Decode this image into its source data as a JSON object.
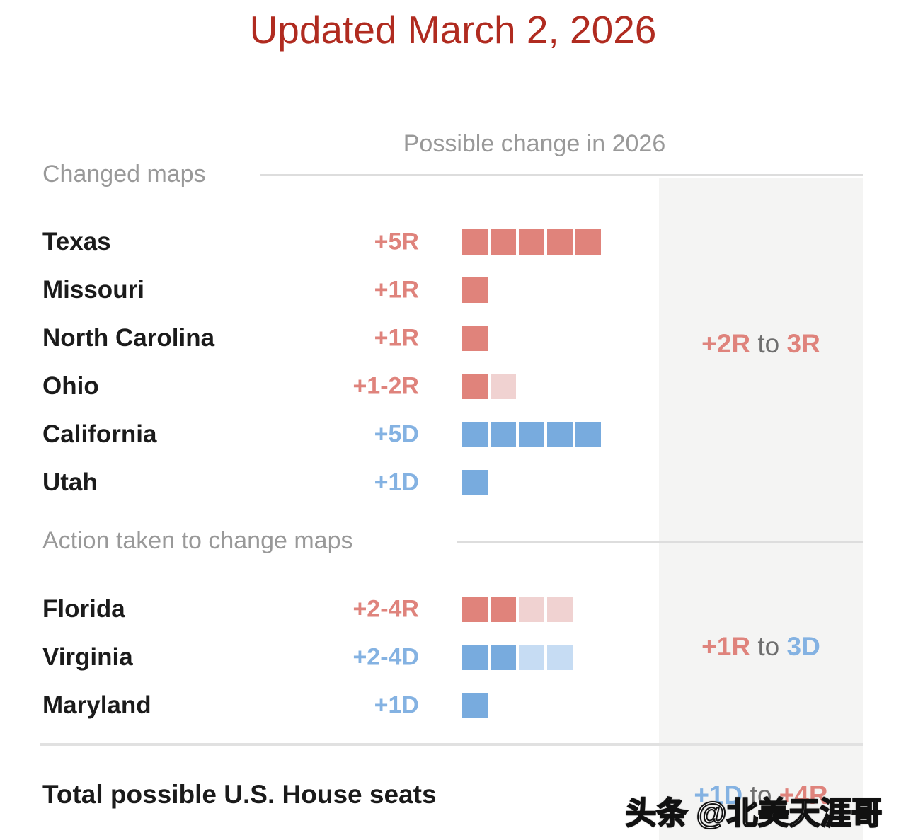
{
  "title": "Updated March 2, 2026",
  "column_header": "Possible change in 2026",
  "watermark": "头条 @北美天涯哥",
  "colors": {
    "title_red": "#b02b20",
    "solid_red": "#e0837b",
    "light_red": "#f0d2d1",
    "solid_blue": "#78abde",
    "light_blue": "#c6dcf3",
    "value_red": "#df837c",
    "value_blue": "#84b2e2",
    "label_gray": "#999999",
    "panel_gray": "#f4f4f3",
    "divider": "#dddddd",
    "text_black": "#1b1b1b",
    "annotation_gray": "#6e6e6e"
  },
  "chart_data": {
    "type": "bar",
    "unit": "U.S. House seats",
    "title": "Possible change in 2026",
    "legend": "one square = one seat; light square = possible additional seat",
    "sections": [
      {
        "label": "Changed maps",
        "net": {
          "left": "+2R",
          "left_party": "R",
          "mid": "to",
          "right": "3R",
          "right_party": "R"
        },
        "rows": [
          {
            "state": "Texas",
            "value": "+5R",
            "party": "R",
            "min_seats": 5,
            "max_seats": 5
          },
          {
            "state": "Missouri",
            "value": "+1R",
            "party": "R",
            "min_seats": 1,
            "max_seats": 1
          },
          {
            "state": "North Carolina",
            "value": "+1R",
            "party": "R",
            "min_seats": 1,
            "max_seats": 1
          },
          {
            "state": "Ohio",
            "value": "+1-2R",
            "party": "R",
            "min_seats": 1,
            "max_seats": 2
          },
          {
            "state": "California",
            "value": "+5D",
            "party": "D",
            "min_seats": 5,
            "max_seats": 5
          },
          {
            "state": "Utah",
            "value": "+1D",
            "party": "D",
            "min_seats": 1,
            "max_seats": 1
          }
        ]
      },
      {
        "label": "Action taken to change maps",
        "net": {
          "left": "+1R",
          "left_party": "R",
          "mid": "to",
          "right": "3D",
          "right_party": "D"
        },
        "rows": [
          {
            "state": "Florida",
            "value": "+2-4R",
            "party": "R",
            "min_seats": 2,
            "max_seats": 4
          },
          {
            "state": "Virginia",
            "value": "+2-4D",
            "party": "D",
            "min_seats": 2,
            "max_seats": 4
          },
          {
            "state": "Maryland",
            "value": "+1D",
            "party": "D",
            "min_seats": 1,
            "max_seats": 1
          }
        ]
      }
    ],
    "total": {
      "label": "Total possible U.S. House seats",
      "net": {
        "left": "+1D",
        "left_party": "D",
        "mid": "to",
        "right": "+4R",
        "right_party": "R"
      }
    }
  }
}
